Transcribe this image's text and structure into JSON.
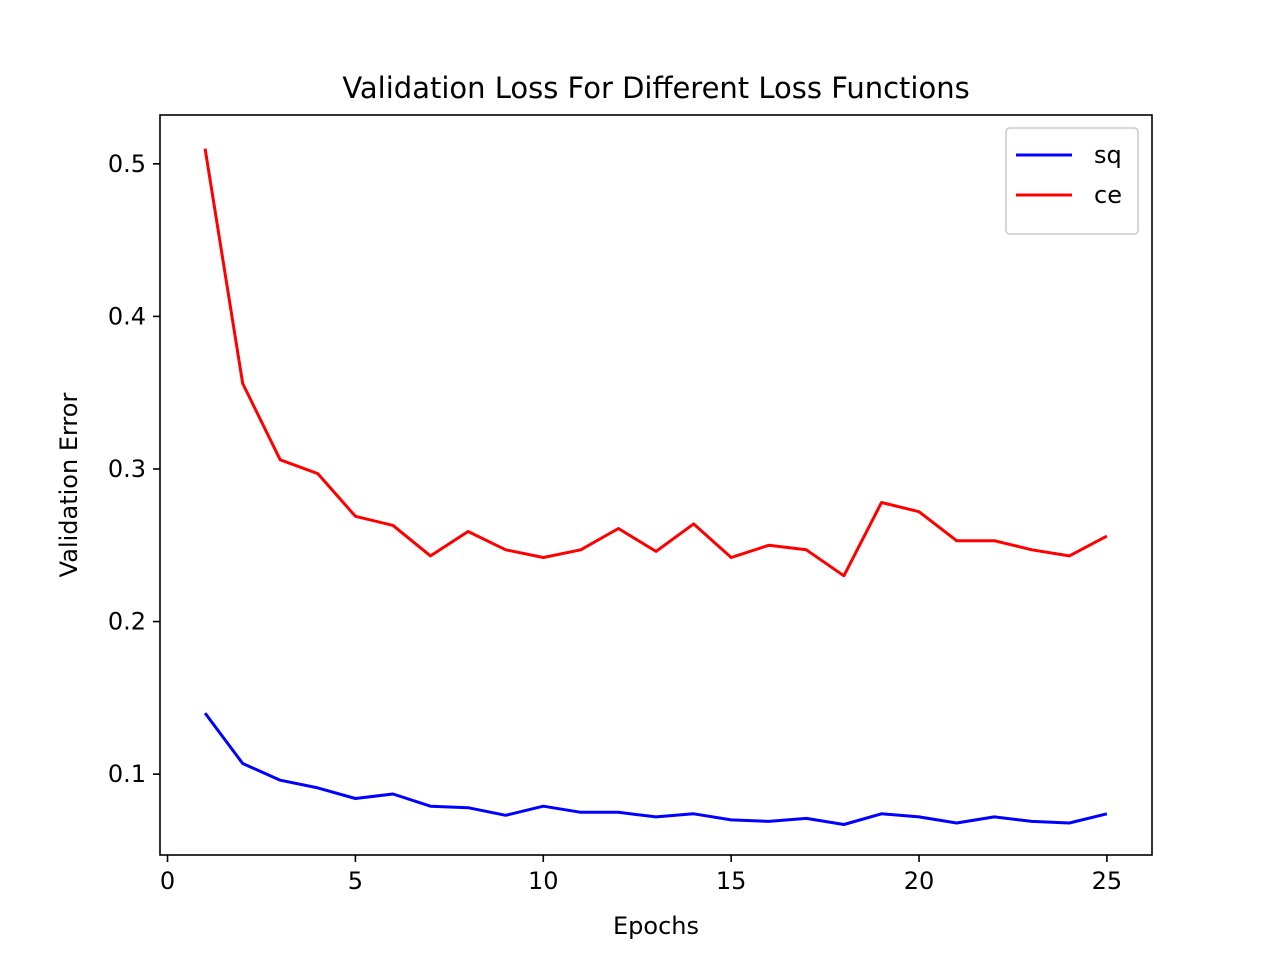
{
  "chart_data": {
    "type": "line",
    "title": "Validation Loss For Different Loss Functions",
    "xlabel": "Epochs",
    "ylabel": "Validation Error",
    "xlim": [
      -0.2,
      26.2
    ],
    "ylim": [
      0.047,
      0.532
    ],
    "xticks": [
      0,
      5,
      10,
      15,
      20,
      25
    ],
    "yticks": [
      0.1,
      0.2,
      0.3,
      0.4,
      0.5
    ],
    "grid": false,
    "legend_position": "top-right",
    "x": [
      1,
      2,
      3,
      4,
      5,
      6,
      7,
      8,
      9,
      10,
      11,
      12,
      13,
      14,
      15,
      16,
      17,
      18,
      19,
      20,
      21,
      22,
      23,
      24,
      25
    ],
    "series": [
      {
        "name": "sq",
        "color": "#0000ff",
        "values": [
          0.14,
          0.107,
          0.096,
          0.091,
          0.084,
          0.087,
          0.079,
          0.078,
          0.073,
          0.079,
          0.075,
          0.075,
          0.072,
          0.074,
          0.07,
          0.069,
          0.071,
          0.067,
          0.074,
          0.072,
          0.068,
          0.072,
          0.069,
          0.068,
          0.074
        ]
      },
      {
        "name": "ce",
        "color": "#ff0000",
        "values": [
          0.51,
          0.356,
          0.306,
          0.297,
          0.269,
          0.263,
          0.243,
          0.259,
          0.247,
          0.242,
          0.247,
          0.261,
          0.246,
          0.264,
          0.242,
          0.25,
          0.247,
          0.23,
          0.278,
          0.272,
          0.253,
          0.253,
          0.247,
          0.243,
          0.256
        ]
      }
    ]
  }
}
